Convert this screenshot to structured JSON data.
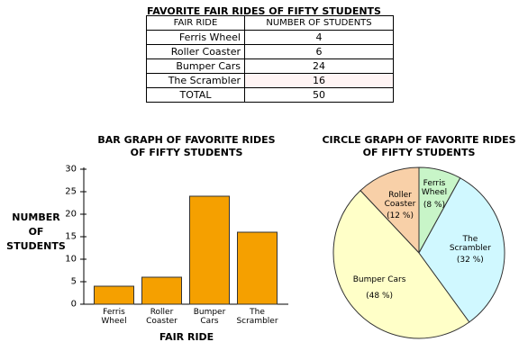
{
  "table": {
    "title": "FAVORITE FAIR RIDES OF FIFTY STUDENTS",
    "header": [
      "FAIR RIDE",
      "NUMBER OF STUDENTS"
    ],
    "rows": [
      [
        "Ferris Wheel",
        4
      ],
      [
        "Roller Coaster",
        6
      ],
      [
        "Bumper Cars",
        24
      ],
      [
        "The Scrambler",
        16
      ],
      [
        "TOTAL",
        50
      ]
    ]
  },
  "chart_data": [
    {
      "type": "bar",
      "title": "BAR GRAPH OF FAVORITE RIDES\nOF FIFTY STUDENTS",
      "x_label": "FAIR RIDE",
      "y_label": "NUMBER OF STUDENTS",
      "categories": [
        "Ferris Wheel",
        "Roller Coaster",
        "Bumper Cars",
        "The Scrambler"
      ],
      "values": [
        4,
        6,
        24,
        16
      ],
      "color": "#f5a000",
      "ylim": [
        0,
        30
      ],
      "yticks": [
        0,
        5,
        10,
        15,
        20,
        25,
        30
      ]
    },
    {
      "type": "pie",
      "title": "CIRCLE GRAPH OF FAVORITE RIDES\nOF FIFTY STUDENTS",
      "categories": [
        "Ferris Wheel",
        "Roller Coaster",
        "Bumper Cars",
        "The Scrambler"
      ],
      "values": [
        8,
        12,
        48,
        32
      ],
      "value_labels": [
        "(8 %)",
        "(12 %)",
        "(48 %)",
        "(32 %)"
      ],
      "colors": [
        "#c8f5c8",
        "#f8d0a8",
        "#ffffc8",
        "#d0f8ff"
      ]
    }
  ]
}
